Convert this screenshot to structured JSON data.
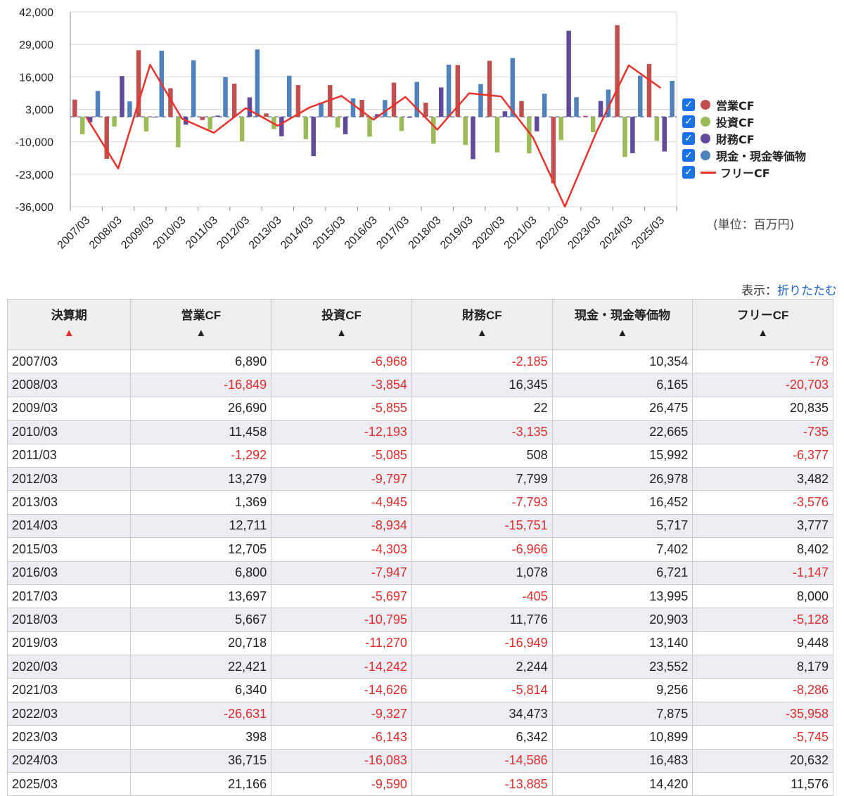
{
  "chart_data": {
    "type": "bar",
    "categories": [
      "2007/03",
      "2008/03",
      "2009/03",
      "2010/03",
      "2011/03",
      "2012/03",
      "2013/03",
      "2014/03",
      "2015/03",
      "2016/03",
      "2017/03",
      "2018/03",
      "2019/03",
      "2020/03",
      "2021/03",
      "2022/03",
      "2023/03",
      "2024/03",
      "2025/03"
    ],
    "series": [
      {
        "name": "営業CF",
        "kind": "bar",
        "color": "#c0504d",
        "values": [
          6890,
          -16849,
          26690,
          11458,
          -1292,
          13279,
          1369,
          12711,
          12705,
          6800,
          13697,
          5667,
          20718,
          22421,
          6340,
          -26631,
          398,
          36715,
          21166
        ]
      },
      {
        "name": "投資CF",
        "kind": "bar",
        "color": "#9bbb59",
        "values": [
          -6968,
          -3854,
          -5855,
          -12193,
          -5085,
          -9797,
          -4945,
          -8934,
          -4303,
          -7947,
          -5697,
          -10795,
          -11270,
          -14242,
          -14626,
          -9327,
          -6143,
          -16083,
          -9590
        ]
      },
      {
        "name": "財務CF",
        "kind": "bar",
        "color": "#604a9b",
        "values": [
          -2185,
          16345,
          22,
          -3135,
          508,
          7799,
          -7793,
          -15751,
          -6966,
          1078,
          -405,
          11776,
          -16949,
          2244,
          -5814,
          34473,
          6342,
          -14586,
          -13885
        ]
      },
      {
        "name": "現金・現金等価物",
        "kind": "bar",
        "color": "#4f81bd",
        "values": [
          10354,
          6165,
          26475,
          22665,
          15992,
          26978,
          16452,
          5717,
          7402,
          6721,
          13995,
          20903,
          13140,
          23552,
          9256,
          7875,
          10899,
          16483,
          14420
        ]
      },
      {
        "name": "フリーCF",
        "kind": "line",
        "color": "#e8322a",
        "values": [
          -78,
          -20703,
          20835,
          -735,
          -6377,
          3482,
          -3576,
          3777,
          8402,
          -1147,
          8000,
          -5128,
          9448,
          8179,
          -8286,
          -35958,
          -5745,
          20632,
          11576
        ]
      }
    ],
    "yticks": [
      42000,
      29000,
      16000,
      3000,
      -10000,
      -23000,
      -36000
    ],
    "ytick_labels": [
      "42,000",
      "29,000",
      "16,000",
      "3,000",
      "-10,000",
      "-23,000",
      "-36,000"
    ],
    "ylim": [
      -36000,
      42000
    ],
    "unit_label": "(単位：百万円)",
    "grid": true,
    "legend": "right"
  },
  "display_label": "表示：",
  "collapse_link": "折りたたむ",
  "table": {
    "headers": [
      "決算期",
      "営業CF",
      "投資CF",
      "財務CF",
      "現金・現金等価物",
      "フリーCF"
    ],
    "sort_arrow": "▲",
    "rows": [
      [
        "2007/03",
        "6,890",
        "-6,968",
        "-2,185",
        "10,354",
        "-78"
      ],
      [
        "2008/03",
        "-16,849",
        "-3,854",
        "16,345",
        "6,165",
        "-20,703"
      ],
      [
        "2009/03",
        "26,690",
        "-5,855",
        "22",
        "26,475",
        "20,835"
      ],
      [
        "2010/03",
        "11,458",
        "-12,193",
        "-3,135",
        "22,665",
        "-735"
      ],
      [
        "2011/03",
        "-1,292",
        "-5,085",
        "508",
        "15,992",
        "-6,377"
      ],
      [
        "2012/03",
        "13,279",
        "-9,797",
        "7,799",
        "26,978",
        "3,482"
      ],
      [
        "2013/03",
        "1,369",
        "-4,945",
        "-7,793",
        "16,452",
        "-3,576"
      ],
      [
        "2014/03",
        "12,711",
        "-8,934",
        "-15,751",
        "5,717",
        "3,777"
      ],
      [
        "2015/03",
        "12,705",
        "-4,303",
        "-6,966",
        "7,402",
        "8,402"
      ],
      [
        "2016/03",
        "6,800",
        "-7,947",
        "1,078",
        "6,721",
        "-1,147"
      ],
      [
        "2017/03",
        "13,697",
        "-5,697",
        "-405",
        "13,995",
        "8,000"
      ],
      [
        "2018/03",
        "5,667",
        "-10,795",
        "11,776",
        "20,903",
        "-5,128"
      ],
      [
        "2019/03",
        "20,718",
        "-11,270",
        "-16,949",
        "13,140",
        "9,448"
      ],
      [
        "2020/03",
        "22,421",
        "-14,242",
        "2,244",
        "23,552",
        "8,179"
      ],
      [
        "2021/03",
        "6,340",
        "-14,626",
        "-5,814",
        "9,256",
        "-8,286"
      ],
      [
        "2022/03",
        "-26,631",
        "-9,327",
        "34,473",
        "7,875",
        "-35,958"
      ],
      [
        "2023/03",
        "398",
        "-6,143",
        "6,342",
        "10,899",
        "-5,745"
      ],
      [
        "2024/03",
        "36,715",
        "-16,083",
        "-14,586",
        "16,483",
        "20,632"
      ],
      [
        "2025/03",
        "21,166",
        "-9,590",
        "-13,885",
        "14,420",
        "11,576"
      ]
    ]
  }
}
